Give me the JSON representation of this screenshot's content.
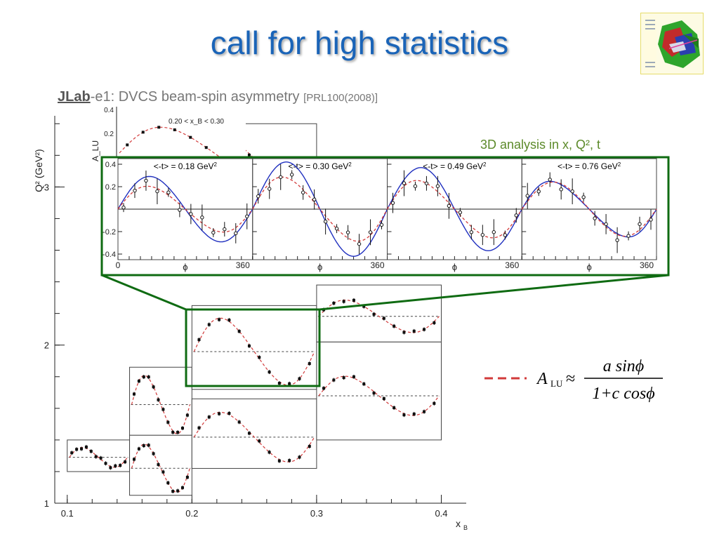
{
  "slide": {
    "title": "call for high statistics",
    "subtitle_jlab": "JLab",
    "subtitle_main": "-e1: DVCS beam-spin asymmetry ",
    "subtitle_ref": "[PRL100(2008)]",
    "annotation_3d": "3D analysis in x, Q², t",
    "formula": {
      "lhs": "A",
      "lhs_sub": "LU",
      "approx": "≈",
      "numerator": "a sinϕ",
      "denominator": "1+c cosϕ"
    }
  },
  "colors": {
    "title": "#1a64b8",
    "green_box": "#0f6b12",
    "fit_red": "#d23a3a",
    "fit_blue": "#1f2fbf",
    "text_gray": "#777777",
    "annotation_green": "#5c8a2a"
  },
  "chart_data": [
    {
      "type": "scatter",
      "title": "",
      "xlabel": "x_B",
      "ylabel": "Q² (GeV²)",
      "xlim": [
        0.09,
        0.42
      ],
      "ylim": [
        1.0,
        3.45
      ],
      "x_ticks": [
        "0.1",
        "0.2",
        "0.3",
        "0.4"
      ],
      "y_ticks": [
        "1",
        "2",
        "3"
      ],
      "bin_label": "0.20 < x_B < 0.30",
      "inset_ylabel": "A_LU",
      "inset_y_ticks": [
        "0.4",
        "0.2"
      ],
      "bins": [
        {
          "x_range": [
            0.1,
            0.15
          ],
          "q2_range": [
            1.2,
            1.4
          ],
          "amp": 0.22
        },
        {
          "x_range": [
            0.15,
            0.2
          ],
          "q2_range": [
            1.05,
            1.43
          ],
          "amp": 0.28
        },
        {
          "x_range": [
            0.15,
            0.2
          ],
          "q2_range": [
            1.43,
            1.86
          ],
          "amp": 0.3
        },
        {
          "x_range": [
            0.2,
            0.3
          ],
          "q2_range": [
            1.22,
            1.66
          ],
          "amp": 0.25
        },
        {
          "x_range": [
            0.2,
            0.3
          ],
          "q2_range": [
            1.72,
            2.25
          ],
          "amp": 0.28
        },
        {
          "x_range": [
            0.3,
            0.4
          ],
          "q2_range": [
            1.4,
            2.02
          ],
          "amp": 0.14
        },
        {
          "x_range": [
            0.3,
            0.4
          ],
          "q2_range": [
            2.02,
            2.38
          ],
          "amp": 0.2
        },
        {
          "x_range": [
            0.2,
            0.3
          ],
          "q2_range": [
            3.0,
            3.4
          ],
          "amp": 0.25
        }
      ]
    },
    {
      "type": "scatter",
      "title": "",
      "xlabel": "ϕ",
      "ylabel": "A_LU",
      "xlim": [
        0,
        360
      ],
      "ylim": [
        -0.45,
        0.45
      ],
      "y_ticks": [
        "0.4",
        "0.2",
        "-0.2",
        "-0.4"
      ],
      "x_ticks": [
        "0",
        "360"
      ],
      "panels": [
        {
          "label": "<-t> = 0.18 GeV²",
          "fit": {
            "a": 0.2,
            "c": -0.2
          },
          "blue_fit": {
            "a": 0.29,
            "c": -0.1
          }
        },
        {
          "label": "<-t> = 0.30 GeV²",
          "fit": {
            "a": 0.28,
            "c": -0.2
          },
          "blue_fit": {
            "a": 0.42,
            "c": 0.0
          }
        },
        {
          "label": "<-t> = 0.49 GeV²",
          "fit": {
            "a": 0.25,
            "c": -0.2
          },
          "blue_fit": {
            "a": 0.37,
            "c": 0.0
          }
        },
        {
          "label": "<-t> = 0.76 GeV²",
          "fit": {
            "a": 0.24,
            "c": -0.1
          },
          "blue_fit": {
            "a": 0.24,
            "c": -0.25
          }
        }
      ]
    }
  ]
}
